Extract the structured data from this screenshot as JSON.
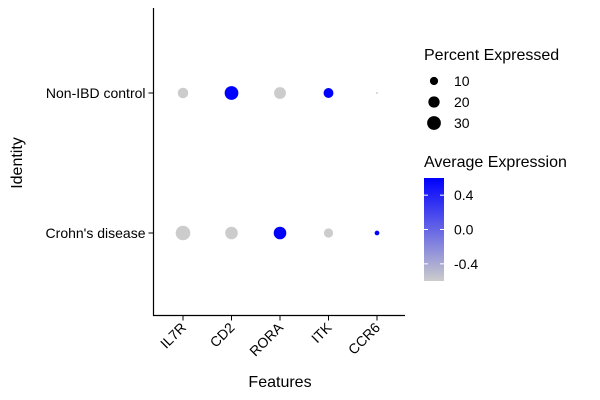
{
  "chart_data": {
    "type": "dot",
    "xlabel": "Features",
    "ylabel": "Identity",
    "features": [
      "IL7R",
      "CD2",
      "RORA",
      "ITK",
      "CCR6"
    ],
    "identities": [
      "Crohn's disease",
      "Non-IBD control"
    ],
    "points": [
      {
        "feature": "IL7R",
        "identity": "Crohn's disease",
        "pct_expressed": 34,
        "avg_expression": -0.6
      },
      {
        "feature": "CD2",
        "identity": "Crohn's disease",
        "pct_expressed": 25,
        "avg_expression": -0.6
      },
      {
        "feature": "RORA",
        "identity": "Crohn's disease",
        "pct_expressed": 25,
        "avg_expression": 0.6
      },
      {
        "feature": "ITK",
        "identity": "Crohn's disease",
        "pct_expressed": 13,
        "avg_expression": -0.6
      },
      {
        "feature": "CCR6",
        "identity": "Crohn's disease",
        "pct_expressed": 3,
        "avg_expression": 0.6
      },
      {
        "feature": "IL7R",
        "identity": "Non-IBD control",
        "pct_expressed": 17,
        "avg_expression": -0.6
      },
      {
        "feature": "CD2",
        "identity": "Non-IBD control",
        "pct_expressed": 30,
        "avg_expression": 0.6
      },
      {
        "feature": "RORA",
        "identity": "Non-IBD control",
        "pct_expressed": 22,
        "avg_expression": -0.6
      },
      {
        "feature": "ITK",
        "identity": "Non-IBD control",
        "pct_expressed": 15,
        "avg_expression": 0.6
      },
      {
        "feature": "CCR6",
        "identity": "Non-IBD control",
        "pct_expressed": 0.3,
        "avg_expression": -0.6
      }
    ],
    "legend": {
      "size_title": "Percent Expressed",
      "size_values": [
        10,
        20,
        30
      ],
      "size_labels": [
        "10",
        "20",
        "30"
      ],
      "color_title": "Average Expression",
      "color_range": [
        -0.6,
        0.6
      ],
      "color_ticks": [
        0.4,
        0.0,
        -0.4
      ],
      "color_tick_labels": [
        "0.4",
        "0.0",
        "-0.4"
      ],
      "color_low": "#cccccc",
      "color_high": "#0000ff",
      "placement": "right"
    },
    "grid": false
  }
}
